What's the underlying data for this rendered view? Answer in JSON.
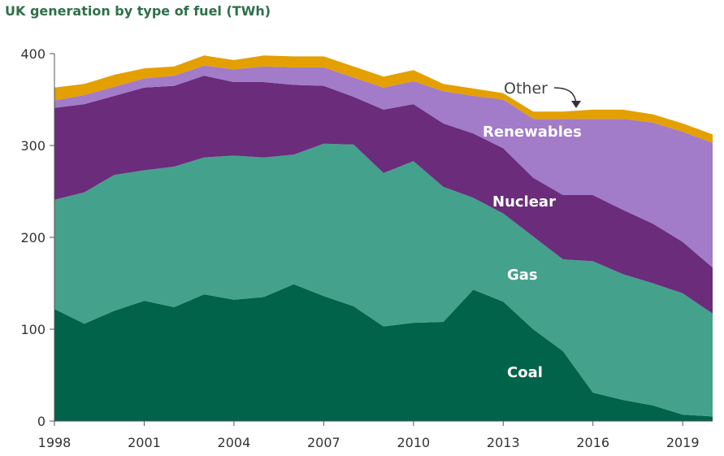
{
  "chart_data": {
    "type": "area",
    "stacked": true,
    "title": "UK generation by type of fuel (TWh)",
    "x": [
      1998,
      1999,
      2000,
      2001,
      2002,
      2003,
      2004,
      2005,
      2006,
      2007,
      2008,
      2009,
      2010,
      2011,
      2012,
      2013,
      2014,
      2015,
      2016,
      2017,
      2018,
      2019,
      2020
    ],
    "x_tick_labels": [
      "1998",
      "2001",
      "2004",
      "2007",
      "2010",
      "2013",
      "2016",
      "2019"
    ],
    "y_tick_labels": [
      "0",
      "100",
      "200",
      "300",
      "400"
    ],
    "ylim": [
      0,
      400
    ],
    "xlim": [
      1998,
      2020
    ],
    "series": [
      {
        "name": "Coal",
        "color": "#00634a",
        "values": [
          122,
          106,
          120,
          131,
          124,
          138,
          132,
          135,
          149,
          136,
          125,
          103,
          107,
          108,
          143,
          130,
          100,
          76,
          31,
          23,
          17,
          7,
          5
        ]
      },
      {
        "name": "Gas",
        "color": "#44a18c",
        "values": [
          119,
          143,
          148,
          142,
          153,
          149,
          157,
          152,
          141,
          166,
          176,
          167,
          176,
          147,
          100,
          96,
          101,
          100,
          143,
          137,
          133,
          132,
          112
        ]
      },
      {
        "name": "Nuclear",
        "color": "#6a2c7b",
        "values": [
          100,
          96,
          86,
          90,
          88,
          89,
          80,
          82,
          76,
          63,
          52,
          69,
          62,
          69,
          70,
          71,
          64,
          70,
          72,
          70,
          65,
          56,
          50
        ]
      },
      {
        "name": "Renewables",
        "color": "#a27bc9",
        "values": [
          8,
          10,
          10,
          10,
          11,
          11,
          14,
          17,
          19,
          20,
          21,
          24,
          25,
          35,
          41,
          53,
          64,
          83,
          83,
          99,
          110,
          120,
          136
        ]
      },
      {
        "name": "Other",
        "color": "#e3a000",
        "values": [
          14,
          12,
          13,
          11,
          10,
          11,
          10,
          12,
          12,
          12,
          12,
          12,
          12,
          8,
          8,
          7,
          8,
          8,
          10,
          10,
          9,
          9,
          9
        ]
      }
    ],
    "annotations": [
      {
        "text": "Other",
        "points_to": "Other"
      },
      {
        "text": "Renewables"
      },
      {
        "text": "Nuclear"
      },
      {
        "text": "Gas"
      },
      {
        "text": "Coal"
      }
    ],
    "grid": false,
    "legend": "none"
  }
}
